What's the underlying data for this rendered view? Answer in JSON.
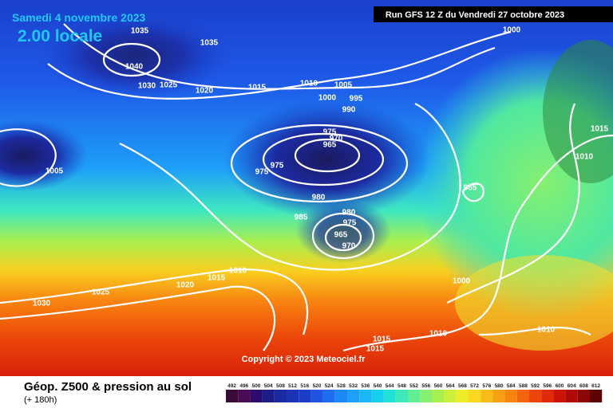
{
  "header": {
    "date": "Samedi 4 novembre 2023",
    "time": "2.00 locale",
    "run": "Run GFS 12 Z du Vendredi 27 octobre 2023"
  },
  "copyright": "Copyright © 2023 Meteociel.fr",
  "footer": {
    "title": "Géop. Z500 & pression au sol",
    "lead": "(+ 180h)"
  },
  "isobar_labels": [
    "1035",
    "1035",
    "1040",
    "1030",
    "1025",
    "1020",
    "1015",
    "1010",
    "1005",
    "1000",
    "995",
    "990",
    "975",
    "970",
    "965",
    "975",
    "975",
    "980",
    "985",
    "980",
    "975",
    "965",
    "970",
    "985",
    "1000",
    "1015",
    "1010",
    "1005",
    "1000",
    "1010",
    "1015",
    "1020",
    "1025",
    "1030",
    "1010",
    "1015",
    "1015",
    "1010"
  ],
  "colorbar": {
    "labels": [
      "492",
      "496",
      "500",
      "504",
      "508",
      "512",
      "516",
      "520",
      "524",
      "528",
      "532",
      "536",
      "540",
      "544",
      "548",
      "552",
      "556",
      "560",
      "564",
      "568",
      "572",
      "576",
      "580",
      "584",
      "588",
      "592",
      "596",
      "600",
      "604",
      "608",
      "612"
    ],
    "colors": [
      "#3a0c3a",
      "#4b0c55",
      "#2e0c6e",
      "#1d1d8a",
      "#1a2aa0",
      "#1c34b4",
      "#1a3ec8",
      "#1f55e0",
      "#1e6cf0",
      "#1e88f6",
      "#1ea0f8",
      "#1ab8f6",
      "#16cfee",
      "#20e0d8",
      "#3ee8b8",
      "#62ee94",
      "#86f070",
      "#a8f050",
      "#ccf03a",
      "#ecec28",
      "#fad820",
      "#f8bc18",
      "#f8a014",
      "#f88410",
      "#f4640c",
      "#ec460a",
      "#e02a08",
      "#cc1406",
      "#b00a06",
      "#8c0606",
      "#5c0404"
    ]
  }
}
